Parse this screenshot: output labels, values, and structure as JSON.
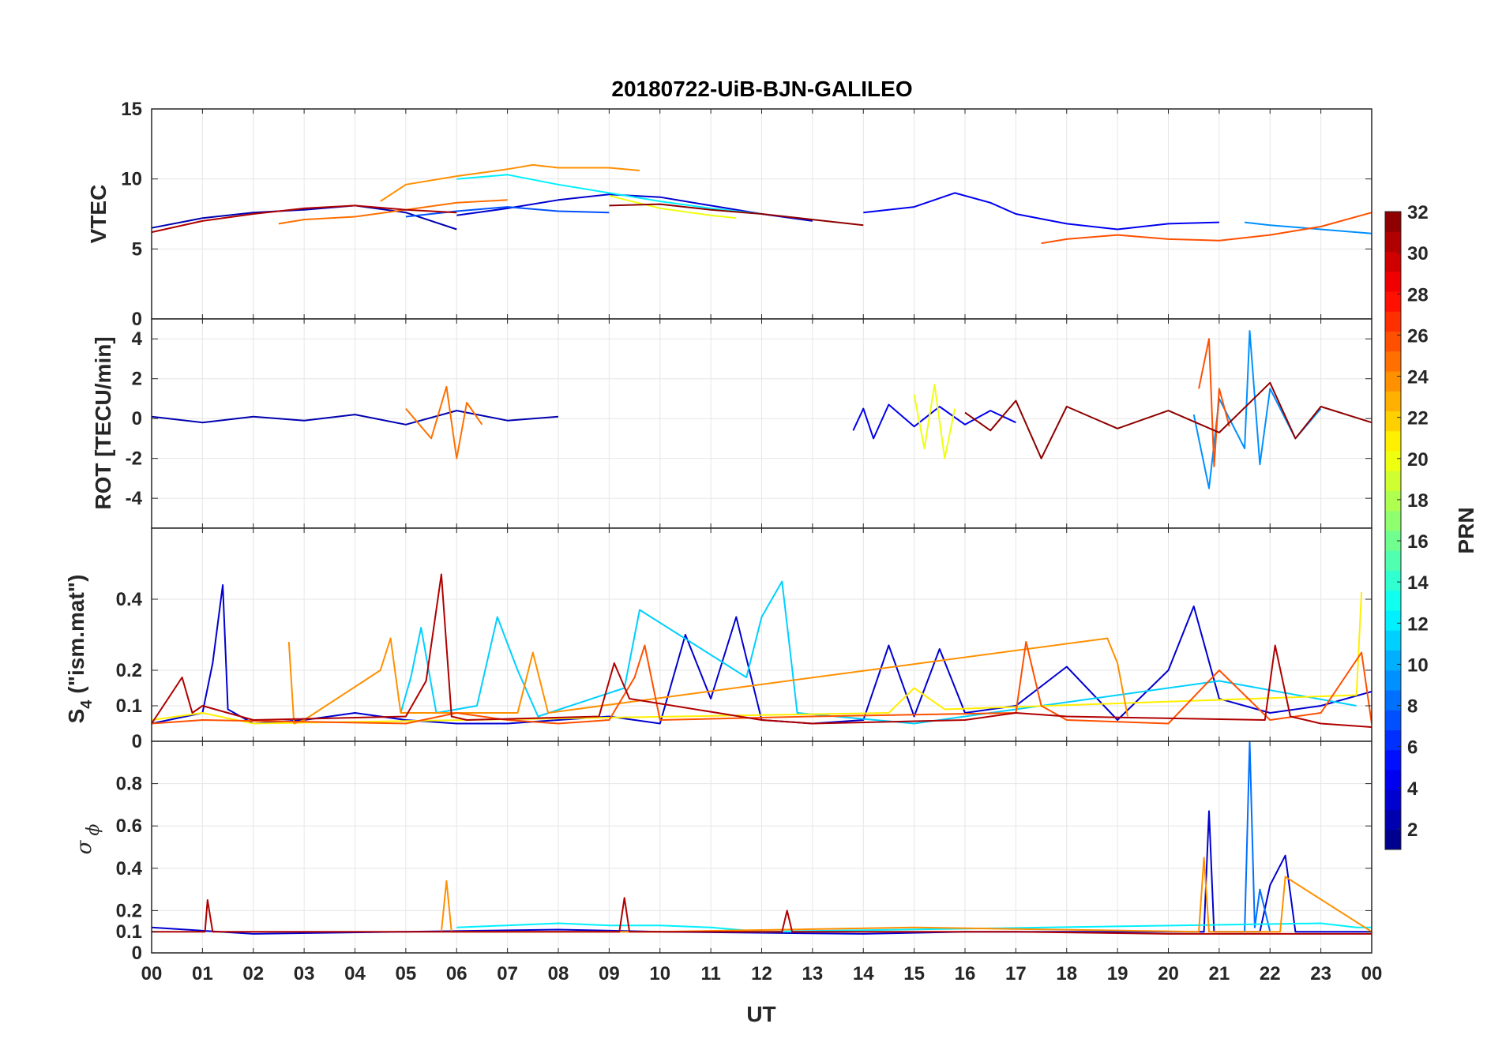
{
  "chart_data": {
    "type": "line",
    "title": "20180722-UiB-BJN-GALILEO",
    "xlabel": "UT",
    "x_ticks": [
      "00",
      "01",
      "02",
      "03",
      "04",
      "05",
      "06",
      "07",
      "08",
      "09",
      "10",
      "11",
      "12",
      "13",
      "14",
      "15",
      "16",
      "17",
      "18",
      "19",
      "20",
      "21",
      "22",
      "23",
      "00"
    ],
    "xlim": [
      0,
      24
    ],
    "grid": true,
    "colorbar": {
      "label": "PRN",
      "range": [
        1,
        32
      ],
      "ticks": [
        "2",
        "4",
        "6",
        "8",
        "10",
        "12",
        "14",
        "16",
        "18",
        "20",
        "22",
        "24",
        "26",
        "28",
        "30",
        "32"
      ],
      "colormap": "jet",
      "colors": [
        "#00008f",
        "#0000b0",
        "#0000d0",
        "#0000f0",
        "#0010ff",
        "#0030ff",
        "#0050ff",
        "#0070ff",
        "#0090ff",
        "#00b0ff",
        "#00d0ff",
        "#00f0ff",
        "#10ffef",
        "#30ffcf",
        "#50ffaf",
        "#70ff8f",
        "#8fff70",
        "#afff50",
        "#cfff30",
        "#efff10",
        "#ffef00",
        "#ffd000",
        "#ffb000",
        "#ff9000",
        "#ff7000",
        "#ff5000",
        "#ff3000",
        "#ff1000",
        "#f00000",
        "#d00000",
        "#b00000",
        "#8f0000"
      ]
    },
    "panels": [
      {
        "id": "vtec",
        "ylabel": "VTEC",
        "ylim": [
          0,
          15
        ],
        "yticks": [
          "0",
          "5",
          "10",
          "15"
        ],
        "ytick_values": [
          0,
          5,
          10,
          15
        ],
        "series": [
          {
            "name": "PRN 2",
            "prn": 2,
            "t": [
              0,
              1,
              2,
              3,
              4,
              5,
              6
            ],
            "y": [
              6.5,
              7.2,
              7.6,
              7.8,
              8.1,
              7.6,
              6.4
            ]
          },
          {
            "name": "PRN 3",
            "prn": 3,
            "t": [
              6,
              7,
              8,
              9,
              10,
              11,
              12,
              13
            ],
            "y": [
              7.4,
              7.9,
              8.5,
              8.9,
              8.7,
              8.1,
              7.5,
              7.0
            ]
          },
          {
            "name": "PRN 4",
            "prn": 4,
            "t": [
              14,
              15,
              15.8,
              16.5,
              17,
              18,
              19,
              20,
              21
            ],
            "y": [
              7.6,
              8.0,
              9.0,
              8.3,
              7.5,
              6.8,
              6.4,
              6.8,
              6.9
            ]
          },
          {
            "name": "PRN 7",
            "prn": 7,
            "t": [
              5,
              6,
              7,
              8,
              9
            ],
            "y": [
              7.3,
              7.7,
              8.0,
              7.7,
              7.6
            ]
          },
          {
            "name": "PRN 9",
            "prn": 9,
            "t": [
              21.5,
              22,
              23,
              24
            ],
            "y": [
              6.9,
              6.7,
              6.4,
              6.1
            ]
          },
          {
            "name": "PRN 12",
            "prn": 12,
            "t": [
              6,
              7,
              8,
              9,
              10,
              11,
              12
            ],
            "y": [
              10.0,
              10.3,
              9.6,
              9.0,
              8.4,
              7.9,
              7.5
            ]
          },
          {
            "name": "PRN 20",
            "prn": 20,
            "t": [
              9,
              10,
              11,
              11.5
            ],
            "y": [
              8.8,
              7.9,
              7.4,
              7.2
            ]
          },
          {
            "name": "PRN 24",
            "prn": 24,
            "t": [
              4.5,
              5,
              6,
              7,
              7.5,
              8,
              9,
              9.6
            ],
            "y": [
              8.4,
              9.6,
              10.2,
              10.7,
              11.0,
              10.8,
              10.8,
              10.6
            ]
          },
          {
            "name": "PRN 25",
            "prn": 25,
            "t": [
              2.5,
              3,
              4,
              5,
              6,
              7
            ],
            "y": [
              6.8,
              7.1,
              7.3,
              7.8,
              8.3,
              8.5
            ]
          },
          {
            "name": "PRN 26",
            "prn": 26,
            "t": [
              17.5,
              18,
              19,
              20,
              21,
              22,
              23,
              24
            ],
            "y": [
              5.4,
              5.7,
              6.0,
              5.7,
              5.6,
              6.0,
              6.6,
              7.6
            ]
          },
          {
            "name": "PRN 31",
            "prn": 31,
            "t": [
              0,
              1,
              2,
              3,
              4,
              5,
              6
            ],
            "y": [
              6.2,
              7.0,
              7.5,
              7.9,
              8.1,
              7.8,
              7.6
            ]
          },
          {
            "name": "PRN 32",
            "prn": 32,
            "t": [
              9,
              10,
              11,
              12,
              13,
              14
            ],
            "y": [
              8.1,
              8.2,
              7.8,
              7.5,
              7.1,
              6.7
            ]
          }
        ]
      },
      {
        "id": "rot",
        "ylabel": "ROT [TECU/min]",
        "ylim": [
          -5.5,
          5
        ],
        "yticks": [
          "-4",
          "-2",
          "0",
          "2",
          "4"
        ],
        "ytick_values": [
          -4,
          -2,
          0,
          2,
          4
        ],
        "series": [
          {
            "name": "PRN 2",
            "prn": 2,
            "t": [
              0,
              1,
              2,
              3,
              4,
              5,
              6,
              7,
              8
            ],
            "y": [
              0.1,
              -0.2,
              0.1,
              -0.1,
              0.2,
              -0.3,
              0.4,
              -0.1,
              0.1
            ]
          },
          {
            "name": "PRN 4",
            "prn": 4,
            "t": [
              13.8,
              14,
              14.2,
              14.5,
              15,
              15.5,
              16,
              16.5,
              17
            ],
            "y": [
              -0.6,
              0.5,
              -1.0,
              0.7,
              -0.4,
              0.6,
              -0.3,
              0.4,
              -0.2
            ]
          },
          {
            "name": "PRN 9",
            "prn": 9,
            "t": [
              20.5,
              20.8,
              21,
              21.5,
              21.6,
              21.8,
              22,
              22.5,
              23
            ],
            "y": [
              0.2,
              -3.5,
              1.0,
              -1.5,
              4.4,
              -2.3,
              1.5,
              -1.0,
              0.5
            ]
          },
          {
            "name": "PRN 20",
            "prn": 20,
            "t": [
              15,
              15.2,
              15.4,
              15.6,
              15.8
            ],
            "y": [
              1.2,
              -1.5,
              1.7,
              -2.0,
              0.5
            ]
          },
          {
            "name": "PRN 25",
            "prn": 25,
            "t": [
              5,
              5.5,
              5.8,
              6,
              6.2,
              6.5
            ],
            "y": [
              0.5,
              -1.0,
              1.6,
              -2.0,
              0.8,
              -0.3
            ]
          },
          {
            "name": "PRN 26",
            "prn": 26,
            "t": [
              20.6,
              20.8,
              20.9,
              21,
              21.2
            ],
            "y": [
              1.5,
              4.0,
              -2.4,
              1.5,
              -0.4
            ]
          },
          {
            "name": "PRN 32",
            "prn": 32,
            "t": [
              16,
              16.5,
              17,
              17.5,
              18,
              19,
              20,
              21,
              22,
              22.5,
              23,
              24
            ],
            "y": [
              0.3,
              -0.6,
              0.9,
              -2.0,
              0.6,
              -0.5,
              0.4,
              -0.7,
              1.8,
              -1.0,
              0.6,
              -0.2
            ]
          }
        ]
      },
      {
        "id": "s4",
        "ylabel": "S",
        "ylabel_sub": "4",
        "ylabel_suffix": "(\"ism.mat\")",
        "ylim": [
          0,
          0.6
        ],
        "yticks": [
          "0",
          "0.1",
          "0.2",
          "0.4"
        ],
        "ytick_values": [
          0,
          0.1,
          0.2,
          0.4
        ],
        "series": [
          {
            "name": "PRN 3",
            "prn": 3,
            "t": [
              0,
              1,
              1.2,
              1.4,
              1.5,
              2,
              3,
              4,
              5,
              6,
              7,
              8,
              9,
              10,
              10.5,
              11,
              11.5,
              12,
              13,
              14,
              14.5,
              15,
              15.5,
              16,
              17,
              18,
              19,
              20,
              20.5,
              21,
              22,
              23,
              24
            ],
            "y": [
              0.05,
              0.08,
              0.22,
              0.44,
              0.09,
              0.05,
              0.06,
              0.08,
              0.06,
              0.05,
              0.05,
              0.06,
              0.07,
              0.05,
              0.3,
              0.12,
              0.35,
              0.06,
              0.05,
              0.06,
              0.27,
              0.07,
              0.26,
              0.08,
              0.1,
              0.21,
              0.06,
              0.2,
              0.38,
              0.12,
              0.08,
              0.1,
              0.14
            ]
          },
          {
            "name": "PRN 11",
            "prn": 11,
            "t": [
              4.9,
              5.1,
              5.3,
              5.6,
              6.4,
              6.8,
              7.2,
              7.6,
              9.3,
              9.6,
              11.7,
              12.0,
              12.4,
              12.7,
              15.0,
              21.0,
              23.7
            ],
            "y": [
              0.08,
              0.18,
              0.32,
              0.08,
              0.1,
              0.35,
              0.2,
              0.07,
              0.15,
              0.37,
              0.18,
              0.35,
              0.45,
              0.08,
              0.05,
              0.17,
              0.1
            ]
          },
          {
            "name": "PRN 21",
            "prn": 21,
            "t": [
              0,
              1,
              2,
              14.5,
              15,
              15.3,
              15.6,
              23.7,
              23.8
            ],
            "y": [
              0.06,
              0.08,
              0.05,
              0.08,
              0.15,
              0.12,
              0.09,
              0.13,
              0.42
            ]
          },
          {
            "name": "PRN 24",
            "prn": 24,
            "t": [
              2.7,
              2.8,
              3,
              4.5,
              4.7,
              4.9,
              7.2,
              7.5,
              7.8,
              18.8,
              19.0,
              19.2
            ],
            "y": [
              0.28,
              0.05,
              0.06,
              0.2,
              0.29,
              0.08,
              0.08,
              0.25,
              0.08,
              0.29,
              0.22,
              0.07
            ]
          },
          {
            "name": "PRN 26",
            "prn": 26,
            "t": [
              0,
              1,
              5,
              6,
              7,
              8,
              9,
              9.5,
              9.7,
              10,
              13,
              17,
              17.2,
              17.5,
              18,
              20,
              21,
              22,
              23,
              23.8,
              24
            ],
            "y": [
              0.05,
              0.06,
              0.05,
              0.08,
              0.06,
              0.05,
              0.06,
              0.18,
              0.27,
              0.06,
              0.07,
              0.08,
              0.28,
              0.1,
              0.06,
              0.05,
              0.2,
              0.06,
              0.08,
              0.25,
              0.05
            ]
          },
          {
            "name": "PRN 31",
            "prn": 31,
            "t": [
              0,
              0.6,
              0.8,
              1,
              2,
              5,
              5.4,
              5.7,
              5.9,
              6.2,
              8.8,
              9.1,
              9.4,
              12,
              13,
              16,
              17,
              18,
              21.9,
              22.1,
              22.4,
              23,
              24
            ],
            "y": [
              0.05,
              0.18,
              0.08,
              0.1,
              0.06,
              0.07,
              0.17,
              0.47,
              0.07,
              0.06,
              0.07,
              0.22,
              0.12,
              0.06,
              0.05,
              0.06,
              0.08,
              0.07,
              0.06,
              0.27,
              0.07,
              0.05,
              0.04
            ]
          }
        ]
      },
      {
        "id": "sigma",
        "ylabel": "σ",
        "ylabel_sub": "ϕ",
        "ylim": [
          0,
          1
        ],
        "yticks": [
          "0",
          "0.1",
          "0.2",
          "0.4",
          "0.6",
          "0.8"
        ],
        "ytick_values": [
          0,
          0.1,
          0.2,
          0.4,
          0.6,
          0.8
        ],
        "series": [
          {
            "name": "PRN 3",
            "prn": 3,
            "t": [
              0,
              2,
              5,
              8,
              10,
              14,
              16,
              18,
              20,
              20.7,
              20.8,
              20.9,
              21,
              21.8,
              22,
              22.3,
              22.5,
              24
            ],
            "y": [
              0.12,
              0.09,
              0.1,
              0.11,
              0.1,
              0.09,
              0.1,
              0.1,
              0.1,
              0.1,
              0.67,
              0.1,
              0.1,
              0.1,
              0.32,
              0.46,
              0.1,
              0.1
            ]
          },
          {
            "name": "PRN 8",
            "prn": 8,
            "t": [
              21.5,
              21.6,
              21.7,
              21.8,
              22
            ],
            "y": [
              0.1,
              1.0,
              0.12,
              0.3,
              0.1
            ]
          },
          {
            "name": "PRN 12",
            "prn": 12,
            "t": [
              6,
              8,
              9,
              10,
              11,
              12,
              23,
              23.7,
              24
            ],
            "y": [
              0.12,
              0.14,
              0.13,
              0.13,
              0.12,
              0.1,
              0.14,
              0.12,
              0.12
            ]
          },
          {
            "name": "PRN 24",
            "prn": 24,
            "t": [
              5.7,
              5.8,
              5.9,
              10,
              15,
              20.6,
              20.7,
              20.8,
              21,
              22.2,
              22.3,
              24
            ],
            "y": [
              0.1,
              0.34,
              0.1,
              0.1,
              0.12,
              0.1,
              0.45,
              0.1,
              0.1,
              0.1,
              0.36,
              0.1
            ]
          },
          {
            "name": "PRN 31",
            "prn": 31,
            "t": [
              0,
              1.05,
              1.1,
              1.2,
              3,
              5,
              9.2,
              9.3,
              9.4,
              12.4,
              12.5,
              12.6,
              17,
              20,
              24
            ],
            "y": [
              0.1,
              0.1,
              0.25,
              0.1,
              0.1,
              0.1,
              0.1,
              0.26,
              0.1,
              0.1,
              0.2,
              0.1,
              0.1,
              0.09,
              0.09
            ]
          }
        ]
      }
    ]
  }
}
